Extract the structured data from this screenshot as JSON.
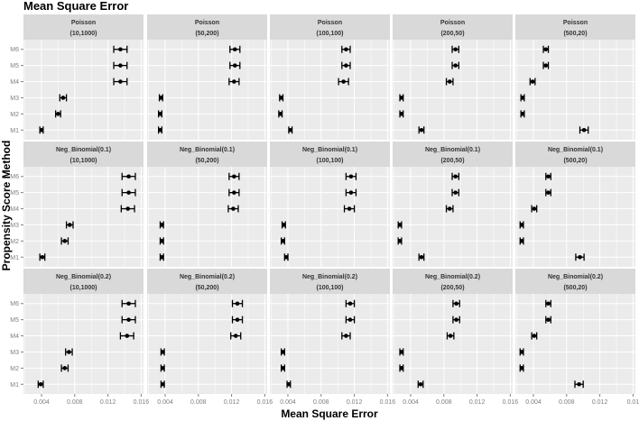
{
  "chart_data": {
    "type": "scatter",
    "subtype": "point-with-errorbars-faceted",
    "title": "Mean Square Error",
    "xlabel": "Mean Square Error",
    "ylabel": "Propensity Score Method",
    "xlim": [
      0.0018,
      0.0163
    ],
    "x_ticks": [
      "0.004",
      "0.008",
      "0.012",
      "0.016"
    ],
    "last_column_last_tick": "0.01",
    "grid": true,
    "categories": [
      "M1",
      "M2",
      "M3",
      "M4",
      "M5",
      "M6"
    ],
    "row_strips": [
      "Poisson",
      "Neg_Binomial(0.1)",
      "Neg_Binomial(0.2)"
    ],
    "col_strips": [
      "(10,1000)",
      "(50,200)",
      "(100,100)",
      "(200,50)",
      "(500,20)"
    ],
    "panels": [
      [
        {
          "values": [
            0.004,
            0.006,
            0.0066,
            0.0135,
            0.0135,
            0.0135
          ],
          "err": [
            0.0002,
            0.0003,
            0.0004,
            0.0008,
            0.0008,
            0.0008
          ]
        },
        {
          "values": [
            0.0034,
            0.0034,
            0.0035,
            0.0123,
            0.0124,
            0.0124
          ],
          "err": [
            0.0002,
            0.0002,
            0.0002,
            0.0006,
            0.0006,
            0.0006
          ]
        },
        {
          "values": [
            0.0043,
            0.0031,
            0.0032,
            0.0107,
            0.011,
            0.011
          ],
          "err": [
            0.0002,
            0.0002,
            0.0002,
            0.0006,
            0.0005,
            0.0005
          ]
        },
        {
          "values": [
            0.0053,
            0.0029,
            0.0029,
            0.0087,
            0.0094,
            0.0094
          ],
          "err": [
            0.0003,
            0.0002,
            0.0002,
            0.0004,
            0.0004,
            0.0004
          ]
        },
        {
          "values": [
            0.0101,
            0.0027,
            0.0027,
            0.0039,
            0.0055,
            0.0055
          ],
          "err": [
            0.0005,
            0.0002,
            0.0002,
            0.0003,
            0.0003,
            0.0003
          ]
        }
      ],
      [
        {
          "values": [
            0.0041,
            0.0068,
            0.0074,
            0.0144,
            0.0145,
            0.0145
          ],
          "err": [
            0.0003,
            0.0004,
            0.0004,
            0.0008,
            0.0008,
            0.0008
          ]
        },
        {
          "values": [
            0.0036,
            0.0036,
            0.0036,
            0.0122,
            0.0123,
            0.0123
          ],
          "err": [
            0.0002,
            0.0002,
            0.0002,
            0.0006,
            0.0006,
            0.0006
          ]
        },
        {
          "values": [
            0.0038,
            0.0034,
            0.0035,
            0.0114,
            0.0116,
            0.0116
          ],
          "err": [
            0.0002,
            0.0002,
            0.0002,
            0.0006,
            0.0006,
            0.0006
          ]
        },
        {
          "values": [
            0.0053,
            0.0027,
            0.0027,
            0.0087,
            0.0094,
            0.0094
          ],
          "err": [
            0.0003,
            0.0002,
            0.0002,
            0.0004,
            0.0004,
            0.0004
          ]
        },
        {
          "values": [
            0.0096,
            0.0026,
            0.0026,
            0.0041,
            0.0058,
            0.0058
          ],
          "err": [
            0.0005,
            0.0002,
            0.0002,
            0.0003,
            0.0003,
            0.0003
          ]
        }
      ],
      [
        {
          "values": [
            0.0039,
            0.0068,
            0.0073,
            0.0143,
            0.0145,
            0.0145
          ],
          "err": [
            0.0003,
            0.0004,
            0.0004,
            0.0008,
            0.0008,
            0.0008
          ]
        },
        {
          "values": [
            0.0037,
            0.0037,
            0.0037,
            0.0125,
            0.0127,
            0.0127
          ],
          "err": [
            0.0002,
            0.0002,
            0.0002,
            0.0006,
            0.0006,
            0.0006
          ]
        },
        {
          "values": [
            0.0041,
            0.0034,
            0.0034,
            0.011,
            0.0115,
            0.0115
          ],
          "err": [
            0.0002,
            0.0002,
            0.0002,
            0.0005,
            0.0005,
            0.0005
          ]
        },
        {
          "values": [
            0.0052,
            0.0029,
            0.0029,
            0.0088,
            0.0095,
            0.0095
          ],
          "err": [
            0.0003,
            0.0002,
            0.0002,
            0.0004,
            0.0004,
            0.0004
          ]
        },
        {
          "values": [
            0.0095,
            0.0026,
            0.0026,
            0.0041,
            0.0058,
            0.0058
          ],
          "err": [
            0.0005,
            0.0002,
            0.0002,
            0.0003,
            0.0003,
            0.0003
          ]
        }
      ]
    ],
    "colors": {
      "panel_bg": "#ebebeb",
      "strip_bg": "#d9d9d9",
      "grid": "#ffffff",
      "marks": "#000000"
    }
  }
}
